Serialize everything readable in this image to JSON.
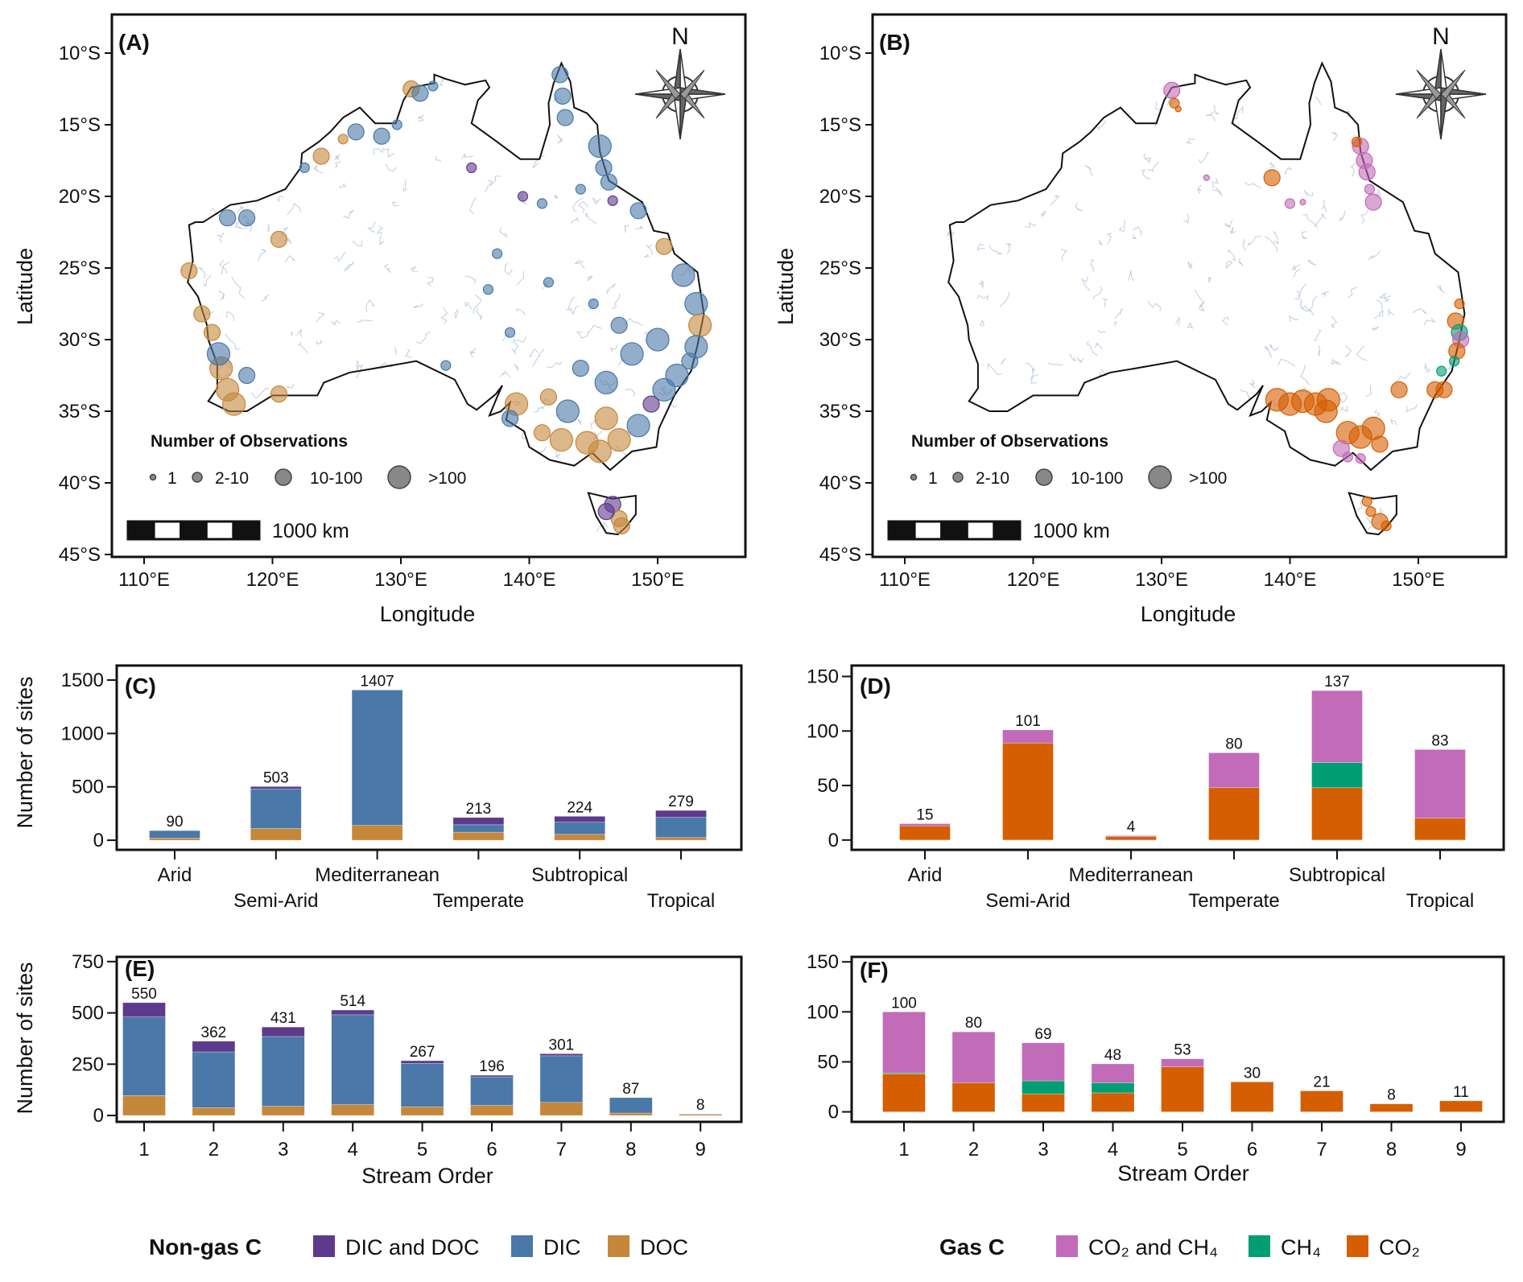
{
  "colors": {
    "dic": "#4a78a8",
    "doc": "#c5873a",
    "dic_doc": "#5e3a8c",
    "co2": "#d55e00",
    "ch4": "#009e73",
    "co2_ch4": "#c26bb8",
    "river": "#b8c8dc"
  },
  "maps": [
    {
      "panel": "(A)",
      "north": "N",
      "xlabel": "Longitude",
      "ylabel": "Latitude",
      "lon_ticks": [
        110,
        120,
        130,
        140,
        150
      ],
      "lon_labels": [
        "110°E",
        "120°E",
        "130°E",
        "140°E",
        "150°E"
      ],
      "lat_ticks": [
        -10,
        -15,
        -20,
        -25,
        -30,
        -35,
        -40,
        -45
      ],
      "lat_labels": [
        "10°S",
        "15°S",
        "20°S",
        "25°S",
        "30°S",
        "35°S",
        "40°S",
        "45°S"
      ],
      "legend_title": "Number of Observations",
      "legend_sizes": [
        "1",
        "2-10",
        "10-100",
        ">100"
      ],
      "scale_label": "1000 km",
      "category_colors": [
        "dic",
        "doc",
        "dic_doc"
      ],
      "points": [
        [
          142.4,
          -11.5,
          2,
          0
        ],
        [
          142.6,
          -13,
          2,
          0
        ],
        [
          142.8,
          -14.5,
          2,
          0
        ],
        [
          145.5,
          -16.5,
          3,
          0
        ],
        [
          145.8,
          -18,
          2,
          0
        ],
        [
          146.2,
          -19,
          2,
          0
        ],
        [
          144,
          -19.5,
          1,
          0
        ],
        [
          141,
          -20.5,
          1,
          0
        ],
        [
          139.5,
          -20,
          1,
          2
        ],
        [
          146.5,
          -20.3,
          1,
          2
        ],
        [
          148.5,
          -21,
          2,
          0
        ],
        [
          150.5,
          -23.5,
          2,
          1
        ],
        [
          152,
          -25.5,
          3,
          0
        ],
        [
          153,
          -27.5,
          3,
          0
        ],
        [
          153.3,
          -29,
          3,
          1
        ],
        [
          153,
          -30.5,
          3,
          0
        ],
        [
          152.5,
          -31.5,
          2,
          0
        ],
        [
          151.5,
          -32.5,
          3,
          0
        ],
        [
          150.5,
          -33.5,
          3,
          0
        ],
        [
          149.5,
          -34.5,
          2,
          2
        ],
        [
          148.5,
          -36,
          3,
          0
        ],
        [
          147,
          -37,
          3,
          1
        ],
        [
          145.5,
          -37.8,
          3,
          1
        ],
        [
          144.5,
          -37.2,
          3,
          1
        ],
        [
          142.5,
          -37,
          3,
          1
        ],
        [
          141,
          -36.5,
          2,
          1
        ],
        [
          139,
          -34.5,
          3,
          1
        ],
        [
          138.5,
          -35.5,
          2,
          0
        ],
        [
          143,
          -35,
          3,
          0
        ],
        [
          146,
          -33,
          3,
          0
        ],
        [
          148,
          -31,
          3,
          0
        ],
        [
          150,
          -30,
          3,
          0
        ],
        [
          144,
          -32,
          2,
          0
        ],
        [
          146,
          -35.5,
          3,
          1
        ],
        [
          141.5,
          -34,
          2,
          1
        ],
        [
          133.5,
          -31.8,
          1,
          0
        ],
        [
          116,
          -32,
          3,
          1
        ],
        [
          116.5,
          -33.5,
          3,
          1
        ],
        [
          117,
          -34.5,
          3,
          1
        ],
        [
          115.8,
          -31,
          3,
          0
        ],
        [
          115.3,
          -29.5,
          2,
          1
        ],
        [
          114.5,
          -28.2,
          2,
          1
        ],
        [
          113.5,
          -25.2,
          2,
          1
        ],
        [
          118,
          -32.5,
          2,
          0
        ],
        [
          120.5,
          -33.8,
          2,
          1
        ],
        [
          118,
          -21.5,
          2,
          0
        ],
        [
          120.5,
          -23,
          2,
          1
        ],
        [
          116.5,
          -21.5,
          2,
          0
        ],
        [
          122.5,
          -18,
          1,
          0
        ],
        [
          123.8,
          -17.2,
          2,
          1
        ],
        [
          125.5,
          -16,
          1,
          1
        ],
        [
          126.5,
          -15.5,
          2,
          0
        ],
        [
          128.5,
          -15.8,
          2,
          0
        ],
        [
          130.8,
          -12.5,
          2,
          1
        ],
        [
          131.5,
          -12.8,
          2,
          0
        ],
        [
          132.5,
          -12.3,
          1,
          0
        ],
        [
          129.7,
          -15,
          1,
          0
        ],
        [
          135.5,
          -18,
          1,
          2
        ],
        [
          137.5,
          -24,
          1,
          0
        ],
        [
          136.8,
          -26.5,
          1,
          0
        ],
        [
          138.5,
          -29.5,
          1,
          0
        ],
        [
          141.5,
          -26,
          1,
          0
        ],
        [
          145,
          -27.5,
          1,
          0
        ],
        [
          147,
          -29,
          2,
          0
        ],
        [
          146.5,
          -41.5,
          2,
          2
        ],
        [
          147,
          -42.5,
          2,
          1
        ],
        [
          146,
          -42,
          2,
          2
        ],
        [
          147.2,
          -43,
          2,
          1
        ]
      ]
    },
    {
      "panel": "(B)",
      "north": "N",
      "xlabel": "Longitude",
      "ylabel": "Latitude",
      "lon_ticks": [
        110,
        120,
        130,
        140,
        150
      ],
      "lon_labels": [
        "110°E",
        "120°E",
        "130°E",
        "140°E",
        "150°E"
      ],
      "lat_ticks": [
        -10,
        -15,
        -20,
        -25,
        -30,
        -35,
        -40,
        -45
      ],
      "lat_labels": [
        "10°S",
        "15°S",
        "20°S",
        "25°S",
        "30°S",
        "35°S",
        "40°S",
        "45°S"
      ],
      "legend_title": "Number of Observations",
      "legend_sizes": [
        "1",
        "2-10",
        "10-100",
        ">100"
      ],
      "scale_label": "1000 km",
      "category_colors": [
        "co2",
        "ch4",
        "co2_ch4"
      ],
      "points": [
        [
          130.8,
          -12.6,
          2,
          2
        ],
        [
          131,
          -13.5,
          1,
          0
        ],
        [
          131.3,
          -13.9,
          0,
          0
        ],
        [
          145.5,
          -16.5,
          2,
          2
        ],
        [
          145.8,
          -17.5,
          2,
          2
        ],
        [
          146,
          -18.3,
          2,
          2
        ],
        [
          146.2,
          -19.5,
          1,
          2
        ],
        [
          146.5,
          -20.4,
          2,
          2
        ],
        [
          145.2,
          -16.2,
          1,
          0
        ],
        [
          138.6,
          -18.7,
          2,
          0
        ],
        [
          140,
          -20.5,
          1,
          2
        ],
        [
          141,
          -20.4,
          0,
          2
        ],
        [
          133.5,
          -18.7,
          0,
          2
        ],
        [
          153.2,
          -27.5,
          1,
          0
        ],
        [
          152.9,
          -28.7,
          2,
          0
        ],
        [
          153.2,
          -29.5,
          2,
          1
        ],
        [
          153.3,
          -30,
          2,
          2
        ],
        [
          153,
          -30.8,
          2,
          0
        ],
        [
          152.8,
          -31.5,
          1,
          1
        ],
        [
          151.8,
          -32.2,
          1,
          1
        ],
        [
          152,
          -33.5,
          2,
          0
        ],
        [
          151.3,
          -33.5,
          2,
          0
        ],
        [
          148.5,
          -33.5,
          2,
          0
        ],
        [
          139,
          -34.2,
          3,
          0
        ],
        [
          140,
          -34.5,
          3,
          0
        ],
        [
          141,
          -34.3,
          3,
          0
        ],
        [
          142,
          -34.5,
          3,
          0
        ],
        [
          142.8,
          -35,
          3,
          0
        ],
        [
          143,
          -34.2,
          3,
          0
        ],
        [
          144.5,
          -36.5,
          3,
          0
        ],
        [
          145.5,
          -36.8,
          3,
          0
        ],
        [
          146.5,
          -36.2,
          3,
          0
        ],
        [
          147,
          -37.3,
          2,
          0
        ],
        [
          144,
          -37.6,
          2,
          2
        ],
        [
          144.5,
          -38.2,
          1,
          2
        ],
        [
          145.5,
          -38.3,
          1,
          2
        ],
        [
          146.3,
          -42,
          1,
          0
        ],
        [
          147,
          -42.7,
          2,
          0
        ],
        [
          147.5,
          -43,
          1,
          0
        ],
        [
          146,
          -41.3,
          1,
          0
        ]
      ]
    }
  ],
  "legends": [
    {
      "title": "Non-gas C",
      "items": [
        {
          "label": "DIC and DOC",
          "color": "dic_doc"
        },
        {
          "label": "DIC",
          "color": "dic"
        },
        {
          "label": "DOC",
          "color": "doc"
        }
      ]
    },
    {
      "title": "Gas C",
      "items": [
        {
          "label": "CO₂ and CH₄",
          "color": "co2_ch4"
        },
        {
          "label": "CH₄",
          "color": "ch4"
        },
        {
          "label": "CO₂",
          "color": "co2"
        }
      ]
    }
  ],
  "chart_data": [
    {
      "type": "bar",
      "stacked": true,
      "panel": "(C)",
      "ylabel": "Number of sites",
      "xlabel": "",
      "categories": [
        "Arid",
        "Semi-Arid",
        "Mediterranean",
        "Temperate",
        "Subtropical",
        "Tropical"
      ],
      "yticks": [
        0,
        500,
        1000,
        1500
      ],
      "ylim": [
        -90,
        1636
      ],
      "series": [
        {
          "name": "DOC",
          "color": "doc",
          "values": [
            20,
            110,
            140,
            75,
            55,
            25
          ]
        },
        {
          "name": "DIC",
          "color": "dic",
          "values": [
            70,
            370,
            1267,
            70,
            115,
            190
          ]
        },
        {
          "name": "DIC and DOC",
          "color": "dic_doc",
          "values": [
            0,
            23,
            0,
            68,
            54,
            64
          ]
        }
      ],
      "totals": [
        90,
        503,
        1407,
        213,
        224,
        279
      ]
    },
    {
      "type": "bar",
      "stacked": true,
      "panel": "(D)",
      "ylabel": "",
      "xlabel": "",
      "categories": [
        "Arid",
        "Semi-Arid",
        "Mediterranean",
        "Temperate",
        "Subtropical",
        "Tropical"
      ],
      "yticks": [
        0,
        50,
        100,
        150
      ],
      "ylim": [
        -9,
        160
      ],
      "series": [
        {
          "name": "CO₂",
          "color": "co2",
          "values": [
            13,
            89,
            3,
            48,
            48,
            20
          ]
        },
        {
          "name": "CH₄",
          "color": "ch4",
          "values": [
            0,
            0,
            0,
            0,
            23,
            0
          ]
        },
        {
          "name": "CO₂ and CH₄",
          "color": "co2_ch4",
          "values": [
            2,
            12,
            1,
            32,
            66,
            63
          ]
        }
      ],
      "totals": [
        15,
        101,
        4,
        80,
        137,
        83
      ]
    },
    {
      "type": "bar",
      "stacked": true,
      "panel": "(E)",
      "ylabel": "Number of sites",
      "xlabel": "Stream Order",
      "categories": [
        "1",
        "2",
        "3",
        "4",
        "5",
        "6",
        "7",
        "8",
        "9"
      ],
      "yticks": [
        0,
        250,
        500,
        750
      ],
      "ylim": [
        -31,
        773
      ],
      "series": [
        {
          "name": "DOC",
          "color": "doc",
          "values": [
            97,
            38,
            45,
            53,
            42,
            49,
            64,
            12,
            6
          ]
        },
        {
          "name": "DIC",
          "color": "dic",
          "values": [
            383,
            272,
            340,
            438,
            212,
            139,
            227,
            75,
            2
          ]
        },
        {
          "name": "DIC and DOC",
          "color": "dic_doc",
          "values": [
            70,
            52,
            46,
            23,
            13,
            8,
            10,
            0,
            0
          ]
        }
      ],
      "totals": [
        550,
        362,
        431,
        514,
        267,
        196,
        301,
        87,
        8
      ]
    },
    {
      "type": "bar",
      "stacked": true,
      "panel": "(F)",
      "ylabel": "",
      "xlabel": "Stream Order",
      "categories": [
        "1",
        "2",
        "3",
        "4",
        "5",
        "6",
        "7",
        "8",
        "9"
      ],
      "yticks": [
        0,
        50,
        100,
        150
      ],
      "ylim": [
        -10,
        155
      ],
      "series": [
        {
          "name": "CO₂",
          "color": "co2",
          "values": [
            38,
            29,
            18,
            19,
            45,
            30,
            21,
            8,
            11
          ]
        },
        {
          "name": "CH₄",
          "color": "ch4",
          "values": [
            1,
            0,
            13,
            10,
            0,
            0,
            0,
            0,
            0
          ]
        },
        {
          "name": "CO₂ and CH₄",
          "color": "co2_ch4",
          "values": [
            61,
            51,
            38,
            19,
            8,
            0,
            0,
            0,
            0
          ]
        }
      ],
      "totals": [
        100,
        80,
        69,
        48,
        53,
        30,
        21,
        8,
        11
      ]
    }
  ]
}
